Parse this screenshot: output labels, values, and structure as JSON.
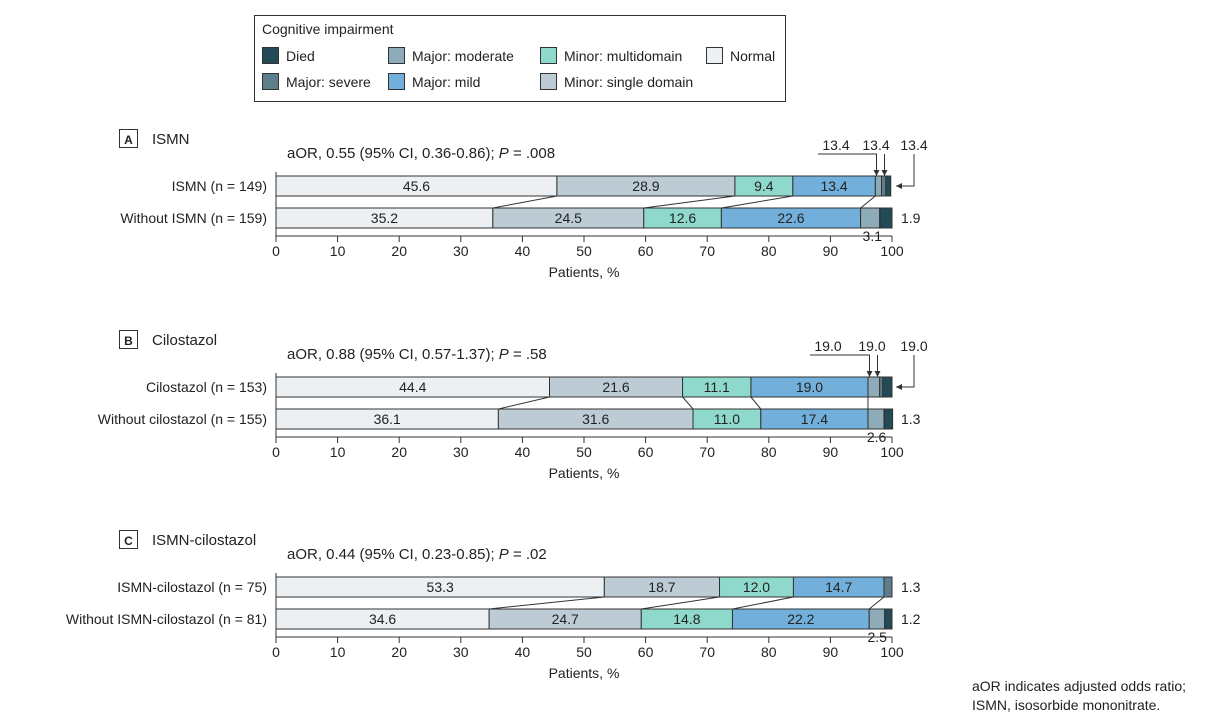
{
  "legend": {
    "title": "Cognitive impairment",
    "items": [
      {
        "label": "Died",
        "color": "#234a57"
      },
      {
        "label": "Major: severe",
        "color": "#5e7e8c"
      },
      {
        "label": "Major: moderate",
        "color": "#8eabba"
      },
      {
        "label": "Major: mild",
        "color": "#72b0db"
      },
      {
        "label": "Minor: multidomain",
        "color": "#8ed9cc"
      },
      {
        "label": "Minor: single domain",
        "color": "#bccbd4"
      },
      {
        "label": "Normal",
        "color": "#ecf0f2"
      }
    ]
  },
  "footnote": [
    "aOR indicates adjusted odds ratio;",
    "ISMN, isosorbide mononitrate."
  ],
  "chart_data": [
    {
      "type": "bar",
      "stacked": true,
      "orientation": "horizontal",
      "panel": "A",
      "title": "ISMN",
      "stat_prefix": "aOR, 0.55 (95% CI, 0.36-0.86); ",
      "stat_p": "P",
      "stat_suffix": " = .008",
      "xlabel": "Patients, %",
      "xlim": [
        0,
        100
      ],
      "xticks": [
        "0",
        "10",
        "20",
        "30",
        "40",
        "50",
        "60",
        "70",
        "80",
        "90",
        "100"
      ],
      "categories": [
        "ISMN  (n = 149)",
        "Without ISMN (n = 159)"
      ],
      "series": [
        {
          "name": "Normal",
          "values": [
            45.6,
            35.2
          ]
        },
        {
          "name": "Minor: single domain",
          "values": [
            28.9,
            24.5
          ]
        },
        {
          "name": "Minor: multidomain",
          "values": [
            9.4,
            12.6
          ]
        },
        {
          "name": "Major: mild",
          "values": [
            13.4,
            22.6
          ]
        },
        {
          "name": "Major: moderate",
          "values": [
            1.0,
            3.1
          ]
        },
        {
          "name": "Major: severe",
          "values": [
            0.7,
            0.1
          ]
        },
        {
          "name": "Died",
          "values": [
            0.8,
            1.9
          ]
        }
      ],
      "segment_labels": [
        [
          "45.6",
          "28.9",
          "9.4",
          "13.4"
        ],
        [
          "35.2",
          "24.5",
          "12.6",
          "22.6"
        ]
      ],
      "annotations": {
        "top": [
          "13.4",
          "13.4",
          "13.4"
        ],
        "right2": "1.9",
        "bottom2": "3.1"
      }
    },
    {
      "type": "bar",
      "stacked": true,
      "orientation": "horizontal",
      "panel": "B",
      "title": "Cilostazol",
      "stat_prefix": "aOR, 0.88 (95% CI, 0.57-1.37); ",
      "stat_p": "P",
      "stat_suffix": " = .58",
      "xlabel": "Patients, %",
      "xlim": [
        0,
        100
      ],
      "xticks": [
        "0",
        "10",
        "20",
        "30",
        "40",
        "50",
        "60",
        "70",
        "80",
        "90",
        "100"
      ],
      "categories": [
        "Cilostazol (n = 153)",
        "Without cilostazol (n = 155)"
      ],
      "series": [
        {
          "name": "Normal",
          "values": [
            44.4,
            36.1
          ]
        },
        {
          "name": "Minor: single domain",
          "values": [
            21.6,
            31.6
          ]
        },
        {
          "name": "Minor: multidomain",
          "values": [
            11.1,
            11.0
          ]
        },
        {
          "name": "Major: mild",
          "values": [
            19.0,
            17.4
          ]
        },
        {
          "name": "Major: moderate",
          "values": [
            1.9,
            2.6
          ]
        },
        {
          "name": "Major: severe",
          "values": [
            0.5,
            0.1
          ]
        },
        {
          "name": "Died",
          "values": [
            1.5,
            1.3
          ]
        }
      ],
      "segment_labels": [
        [
          "44.4",
          "21.6",
          "11.1",
          "19.0"
        ],
        [
          "36.1",
          "31.6",
          "11.0",
          "17.4"
        ]
      ],
      "annotations": {
        "top": [
          "19.0",
          "19.0",
          "19.0"
        ],
        "right2": "1.3",
        "bottom2": "2.6"
      }
    },
    {
      "type": "bar",
      "stacked": true,
      "orientation": "horizontal",
      "panel": "C",
      "title": "ISMN-cilostazol",
      "stat_prefix": "aOR, 0.44 (95% CI, 0.23-0.85); ",
      "stat_p": "P",
      "stat_suffix": " = .02",
      "xlabel": "Patients, %",
      "xlim": [
        0,
        100
      ],
      "xticks": [
        "0",
        "10",
        "20",
        "30",
        "40",
        "50",
        "60",
        "70",
        "80",
        "90",
        "100"
      ],
      "categories": [
        "ISMN-cilostazol (n = 75)",
        "Without ISMN-cilostazol (n = 81)"
      ],
      "series": [
        {
          "name": "Normal",
          "values": [
            53.3,
            34.6
          ]
        },
        {
          "name": "Minor: single domain",
          "values": [
            18.7,
            24.7
          ]
        },
        {
          "name": "Minor: multidomain",
          "values": [
            12.0,
            14.8
          ]
        },
        {
          "name": "Major: mild",
          "values": [
            14.7,
            22.2
          ]
        },
        {
          "name": "Major: moderate",
          "values": [
            0.0,
            2.5
          ]
        },
        {
          "name": "Major: severe",
          "values": [
            1.3,
            0.0
          ]
        },
        {
          "name": "Died",
          "values": [
            0.0,
            1.2
          ]
        }
      ],
      "segment_labels": [
        [
          "53.3",
          "18.7",
          "12.0",
          "14.7"
        ],
        [
          "34.6",
          "24.7",
          "14.8",
          "22.2"
        ]
      ],
      "annotations": {
        "top": [],
        "right1": "1.3",
        "right2": "1.2",
        "bottom2": "2.5"
      }
    }
  ]
}
